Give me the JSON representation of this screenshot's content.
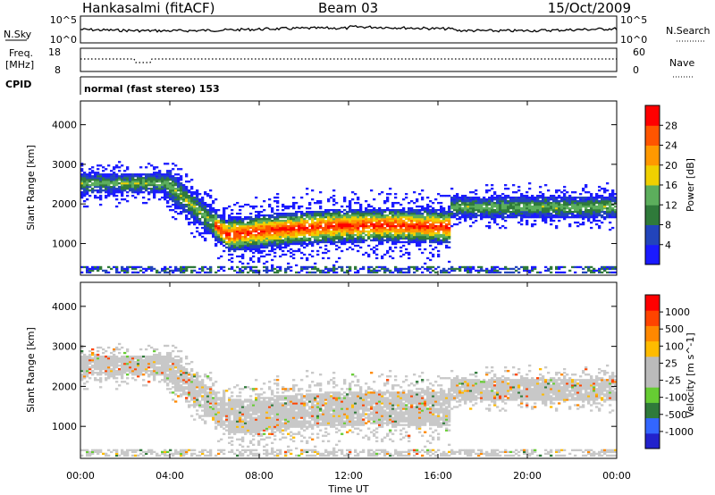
{
  "header": {
    "station": "Hankasalmi (fitACF)",
    "beam": "Beam 03",
    "date": "15/Oct/2009"
  },
  "noise_panel": {
    "left_label": "N.Sky",
    "right_label": "N.Search",
    "left_ticks": [
      "10^5",
      "10^0"
    ],
    "right_ticks": [
      "10^5",
      "10^0"
    ]
  },
  "freq_panel": {
    "left_label_1": "Freq.",
    "left_label_2": "[MHz]",
    "right_label": "Nave",
    "left_ticks": [
      "18",
      "8"
    ],
    "right_ticks": [
      "60",
      "0"
    ],
    "cpid_label": "CPID",
    "cpid_text": "normal (fast stereo) 153"
  },
  "colors": {
    "power": [
      "#1a1aff",
      "#2244bb",
      "#2f7a3a",
      "#5cae5c",
      "#f0d000",
      "#ff9900",
      "#ff5500",
      "#ff0000"
    ],
    "velocity": [
      "#2222cc",
      "#3366ff",
      "#2f7a3a",
      "#66cc33",
      "#bbbbbb",
      "#bbbbbb",
      "#ffbb00",
      "#ff8800",
      "#ff4400",
      "#ff0000"
    ],
    "scatter_gray": "#c8c8c8"
  },
  "chart_data": [
    {
      "type": "heatmap",
      "panel": "power",
      "ylabel": "Slant Range [km]",
      "y_ticks": [
        "1000",
        "2000",
        "3000",
        "4000"
      ],
      "ylim": [
        200,
        4600
      ],
      "x_ticks": [
        "00:00",
        "04:00",
        "08:00",
        "12:00",
        "16:00",
        "20:00",
        "00:00"
      ],
      "xlim_hours": [
        0,
        24
      ],
      "colorbar_label": "Power [dB]",
      "colorbar_ticks": [
        "4",
        "8",
        "12",
        "16",
        "20",
        "24",
        "28"
      ],
      "colorbar_range": [
        0,
        30
      ]
    },
    {
      "type": "heatmap",
      "panel": "velocity",
      "ylabel": "Slant Range [km]",
      "y_ticks": [
        "1000",
        "2000",
        "3000",
        "4000"
      ],
      "ylim": [
        200,
        4600
      ],
      "x_ticks": [
        "00:00",
        "04:00",
        "08:00",
        "12:00",
        "16:00",
        "20:00",
        "00:00"
      ],
      "xlabel": "Time UT",
      "colorbar_label": "Velocity [m s^-1]",
      "colorbar_ticks": [
        "1000",
        "500",
        "100",
        "25",
        "-25",
        "-100",
        "-500",
        "-1000"
      ]
    }
  ]
}
